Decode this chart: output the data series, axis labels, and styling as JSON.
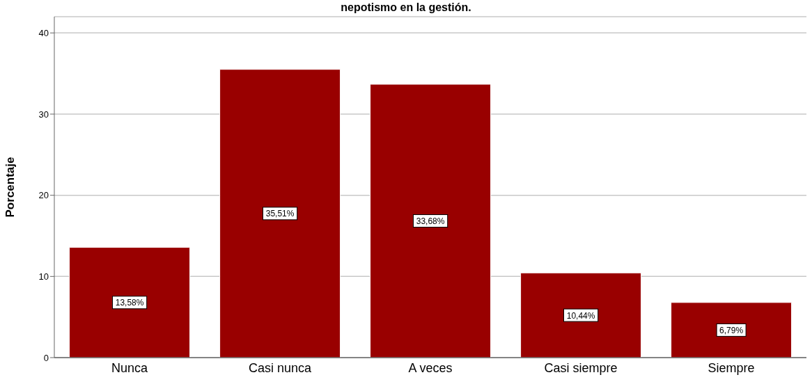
{
  "chart_data": {
    "type": "bar",
    "title": "nepotismo en la gestión.",
    "ylabel": "Porcentaje",
    "categories": [
      "Nunca",
      "Casi nunca",
      "A veces",
      "Casi siempre",
      "Siempre"
    ],
    "values": [
      13.58,
      35.51,
      33.68,
      10.44,
      6.79
    ],
    "value_labels": [
      "13,58%",
      "35,51%",
      "33,68%",
      "10,44%",
      "6,79%"
    ],
    "color": "#990000",
    "ylim": [
      0,
      42
    ],
    "yticks": [
      0,
      10,
      20,
      30,
      40
    ],
    "grid": "y",
    "legend": false
  }
}
